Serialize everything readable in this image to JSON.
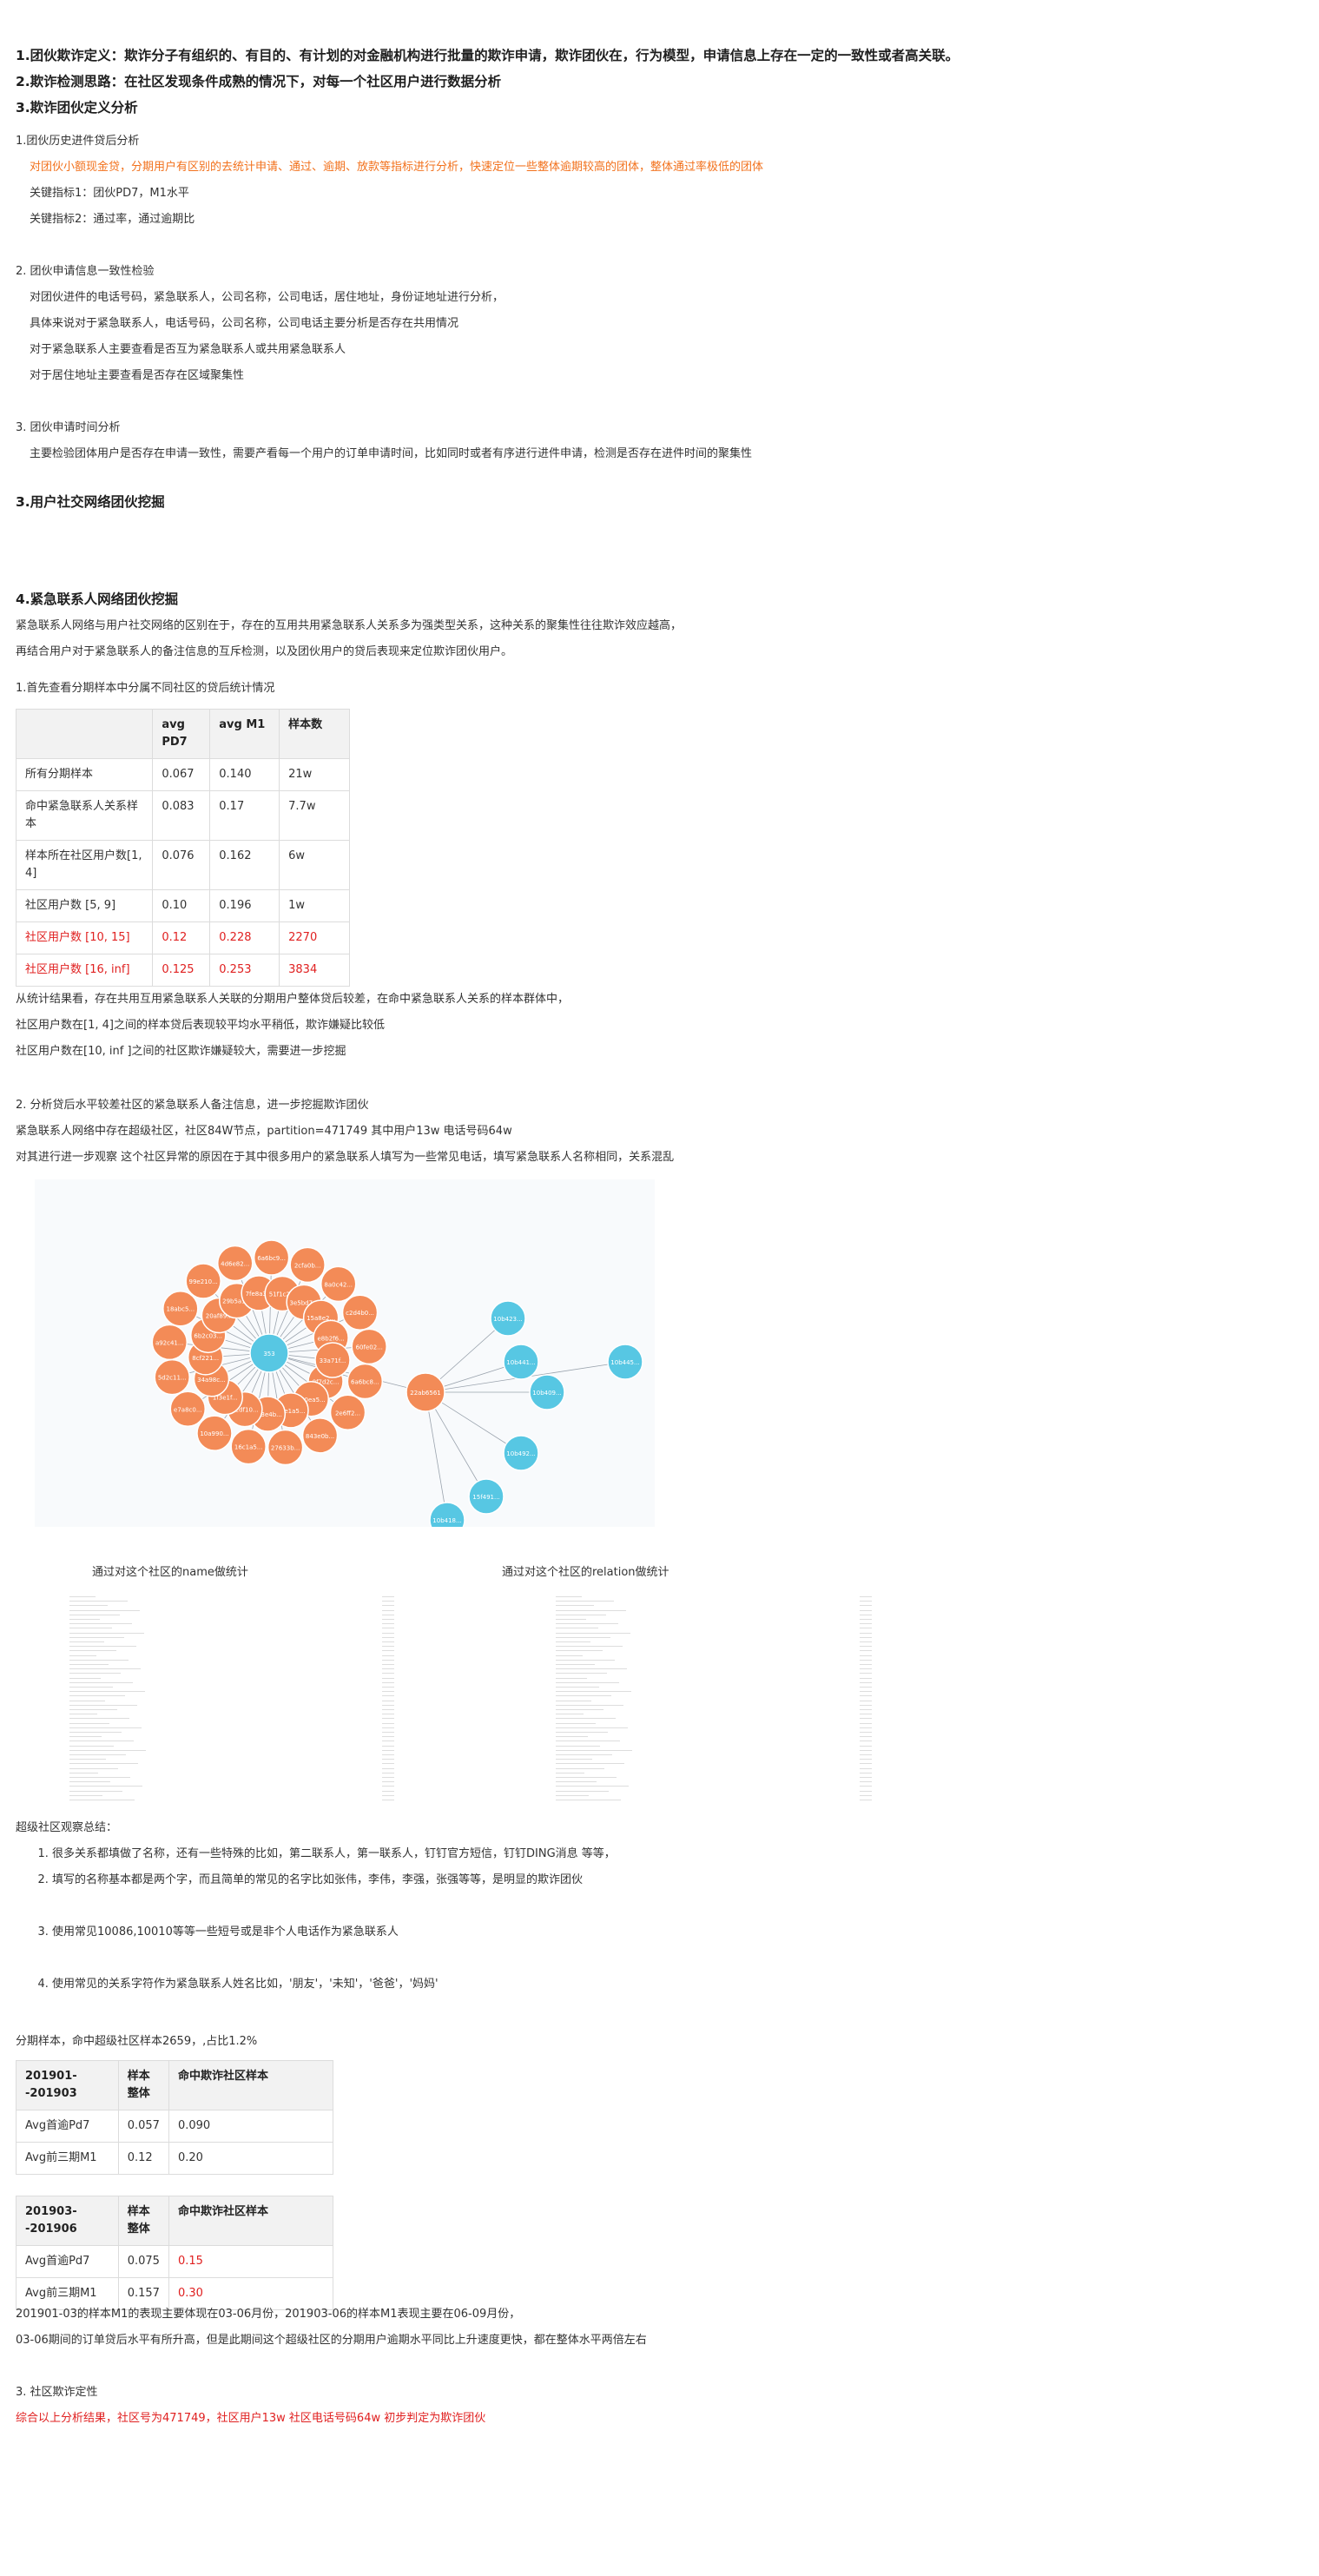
{
  "headings": {
    "h1": "1.团伙欺诈定义：欺诈分子有组织的、有目的、有计划的对金融机构进行批量的欺诈申请，欺诈团伙在，行为模型，申请信息上存在一定的一致性或者高关联。",
    "h2": "2.欺诈检测思路：在社区发现条件成熟的情况下，对每一个社区用户进行数据分析",
    "h3": "3.欺诈团伙定义分析",
    "h4": "3.用户社交网络团伙挖掘",
    "h5": "4.紧急联系人网络团伙挖掘"
  },
  "sec3": {
    "s1_title": "1.团伙历史进件贷后分析",
    "s1_orange": "对团伙小额现金贷，分期用户有区别的去统计申请、通过、逾期、放款等指标进行分析，快速定位一些整体逾期较高的团体，整体通过率极低的团体",
    "s1_k1": "关键指标1：团伙PD7，M1水平",
    "s1_k2": "关键指标2：通过率，通过逾期比",
    "s2_title": "2. 团伙申请信息一致性检验",
    "s2_l1": "对团伙进件的电话号码，紧急联系人，公司名称，公司电话，居住地址，身份证地址进行分析，",
    "s2_l2": "具体来说对于紧急联系人，电话号码，公司名称，公司电话主要分析是否存在共用情况",
    "s2_l3": "对于紧急联系人主要查看是否互为紧急联系人或共用紧急联系人",
    "s2_l4": "对于居住地址主要查看是否存在区域聚集性",
    "s3_title": "3. 团伙申请时间分析",
    "s3_l1": "主要检验团体用户是否存在申请一致性，需要产看每一个用户的订单申请时间，比如同时或者有序进行进件申请，检测是否存在进件时间的聚集性"
  },
  "sec4": {
    "intro1": "紧急联系人网络与用户社交网络的区别在于，存在的互用共用紧急联系人关系多为强类型关系，这种关系的聚集性往往欺诈效应越高，",
    "intro2": "再结合用户对于紧急联系人的备注信息的互斥检测，以及团伙用户的贷后表现来定位欺诈团伙用户。",
    "t1_title": "1.首先查看分期样本中分属不同社区的贷后统计情况",
    "t1_head": [
      "",
      "avg PD7",
      "avg M1",
      "样本数"
    ],
    "t1_rows": [
      {
        "c0": "所有分期样本",
        "c1": "0.067",
        "c2": "0.140",
        "c3": "21w",
        "red": false
      },
      {
        "c0": "命中紧急联系人关系样本",
        "c1": "0.083",
        "c2": "0.17",
        "c3": "7.7w",
        "red": false
      },
      {
        "c0": "样本所在社区用户数[1, 4]",
        "c1": "0.076",
        "c2": "0.162",
        "c3": "6w",
        "red": false
      },
      {
        "c0": "社区用户数 [5, 9]",
        "c1": "0.10",
        "c2": "0.196",
        "c3": "1w",
        "red": false
      },
      {
        "c0": "社区用户数 [10, 15]",
        "c1": "0.12",
        "c2": "0.228",
        "c3": "2270",
        "red": true
      },
      {
        "c0": "社区用户数 [16, inf]",
        "c1": "0.125",
        "c2": "0.253",
        "c3": "3834",
        "red": true
      }
    ],
    "concl1": "从统计结果看，存在共用互用紧急联系人关联的分期用户整体贷后较差，在命中紧急联系人关系的样本群体中，",
    "concl2": "社区用户数在[1, 4]之间的样本贷后表现较平均水平稍低，欺诈嫌疑比较低",
    "concl3": "社区用户数在[10, inf ]之间的社区欺诈嫌疑较大，需要进一步挖掘",
    "p2_title": "2. 分析贷后水平较差社区的紧急联系人备注信息，进一步挖掘欺诈团伙",
    "p2_l1": "紧急联系人网络中存在超级社区，社区84W节点，partition=471749 其中用户13w 电话号码64w",
    "p2_l2": "对其进行进一步观察 这个社区异常的原因在于其中很多用户的紧急联系人填写为一些常见电话，填写紧急联系人名称相同，关系混乱",
    "cap_left": "通过对这个社区的name做统计",
    "cap_right": "通过对这个社区的relation做统计",
    "summary_title": "超级社区观察总结：",
    "summary": [
      "很多关系都填做了名称，还有一些特殊的比如，第二联系人，第一联系人，钉钉官方短信，钉钉DING消息 等等，",
      "填写的名称基本都是两个字，而且简单的常见的名字比如张伟，李伟，李强，张强等等，是明显的欺诈团伙",
      "使用常见10086,10010等等一些短号或是非个人电话作为紧急联系人",
      "使用常见的关系字符作为紧急联系人姓名比如，'朋友'，'未知'，'爸爸'，'妈妈'"
    ],
    "sample_line": "分期样本，命中超级社区样本2659，,占比1.2%",
    "t2_head": [
      "201901--201903",
      "样本整体",
      "命中欺诈社区样本"
    ],
    "t2_rows": [
      {
        "c0": "Avg首逾Pd7",
        "c1": "0.057",
        "c2": "0.090"
      },
      {
        "c0": "Avg前三期M1",
        "c1": "0.12",
        "c2": "0.20"
      }
    ],
    "t3_head": [
      "201903--201906",
      "样本整体",
      "命中欺诈社区样本"
    ],
    "t3_rows": [
      {
        "c0": "Avg首逾Pd7",
        "c1": "0.075",
        "c2": "0.15"
      },
      {
        "c0": "Avg前三期M1",
        "c1": "0.157",
        "c2": "0.30"
      }
    ],
    "after1": "201901-03的样本M1的表现主要体现在03-06月份，201903-06的样本M1表现主要在06-09月份，",
    "after2": "03-06期间的订单贷后水平有所升高，但是此期间这个超级社区的分期用户逾期水平同比上升速度更快，都在整体水平两倍左右",
    "p3_title": "3. 社区欺诈定性",
    "p3_red": "综合以上分析结果，社区号为471749，社区用户13w 社区电话号码64w 初步判定为欺诈团伙"
  },
  "graph": {
    "center_hub": "353",
    "second_hub": "22ab6561",
    "orange_labels": [
      "6a6bc8...",
      "0f7d2c...",
      "2e6ff2...",
      "9a0ea5...",
      "843e0b...",
      "87e1a5...",
      "27633b...",
      "5a3e4b...",
      "16c1a5...",
      "42df10...",
      "10a990...",
      "1f3e1f...",
      "e7a8c0...",
      "34a98c...",
      "5d2c11...",
      "8cf221...",
      "a92c41...",
      "6b2c03...",
      "18abc5...",
      "20af89...",
      "99e210...",
      "29b5a1...",
      "4d6e82...",
      "7fe8a3...",
      "6a6bc9...",
      "51f1c2...",
      "2cfa0b...",
      "3e5bd7...",
      "8a0c42...",
      "15a8e2...",
      "c2d4b0...",
      "e8b2f6...",
      "60fe02...",
      "33a71f..."
    ],
    "blue_labels": [
      "10b423...",
      "10b441...",
      "10b409...",
      "10b445...",
      "10b492...",
      "15f491...",
      "10b418..."
    ],
    "orange_color": "#f38b57",
    "blue_color": "#57c7e3"
  }
}
